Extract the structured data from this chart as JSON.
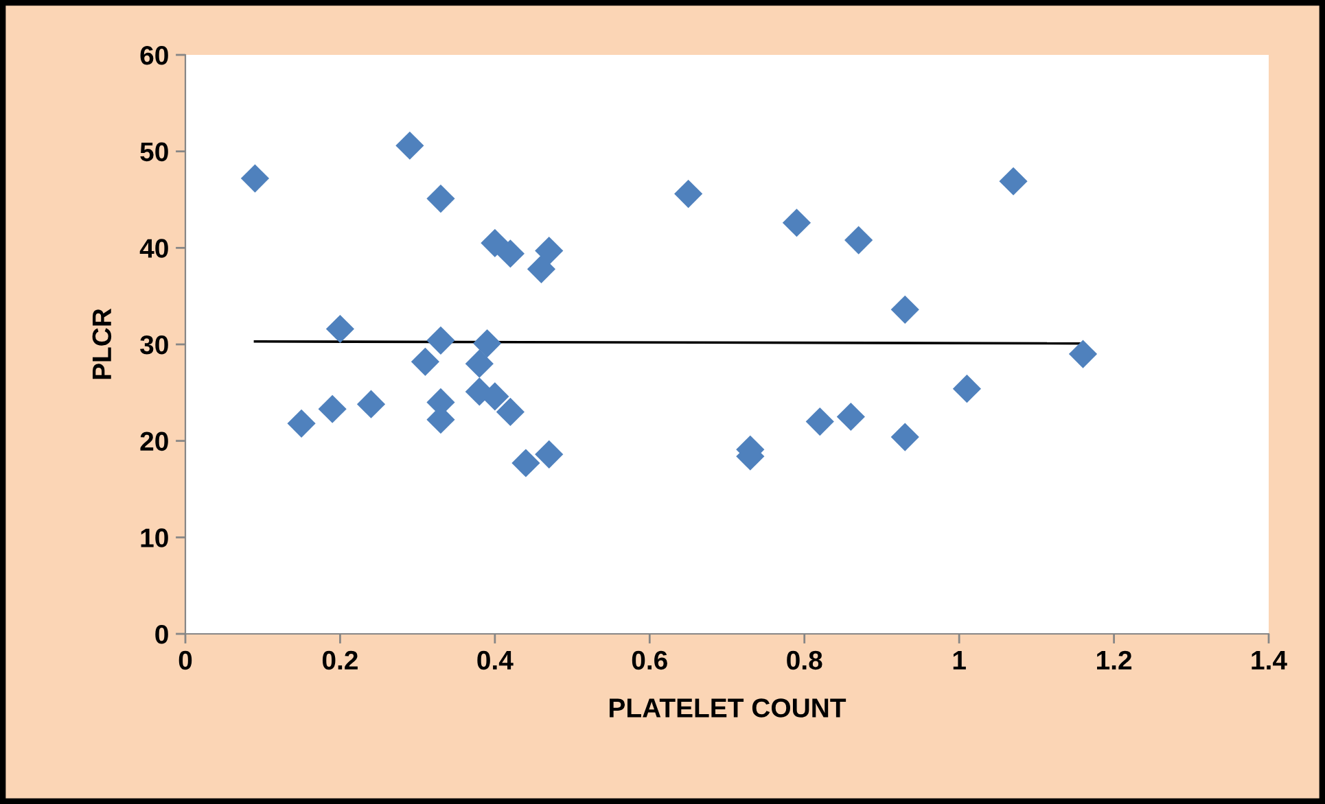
{
  "chart_data": {
    "type": "scatter",
    "xlabel": "PLATELET COUNT",
    "ylabel": "PLCR",
    "marker": "diamond",
    "grid": false,
    "legend": false,
    "xlim": [
      0,
      1.4
    ],
    "xticks": [
      0,
      0.2,
      0.4,
      0.6,
      0.8,
      1,
      1.2,
      1.4
    ],
    "ylim": [
      0,
      60
    ],
    "yticks": [
      0,
      10,
      20,
      30,
      40,
      50,
      60
    ],
    "series": [
      {
        "color": "#4f81bd",
        "x": [
          0.09,
          0.15,
          0.19,
          0.2,
          0.24,
          0.29,
          0.31,
          0.33,
          0.33,
          0.33,
          0.33,
          0.38,
          0.38,
          0.39,
          0.4,
          0.4,
          0.42,
          0.42,
          0.44,
          0.46,
          0.47,
          0.47,
          0.65,
          0.73,
          0.73,
          0.79,
          0.82,
          0.86,
          0.87,
          0.93,
          0.93,
          1.01,
          1.07,
          1.16
        ],
        "values": [
          47.2,
          21.8,
          23.3,
          31.6,
          23.8,
          50.6,
          28.2,
          45.1,
          30.4,
          24.0,
          22.2,
          28.0,
          25.1,
          30.1,
          40.5,
          24.6,
          39.4,
          23.0,
          17.7,
          37.8,
          39.7,
          18.6,
          45.6,
          19.1,
          18.4,
          42.6,
          22.0,
          22.5,
          40.8,
          33.6,
          20.4,
          25.4,
          46.9,
          29.0
        ]
      },
      {
        "type": "line",
        "color": "#000000",
        "marker": "none",
        "x": [
          0.09,
          1.16
        ],
        "values": [
          30.3,
          30.1
        ]
      }
    ]
  }
}
